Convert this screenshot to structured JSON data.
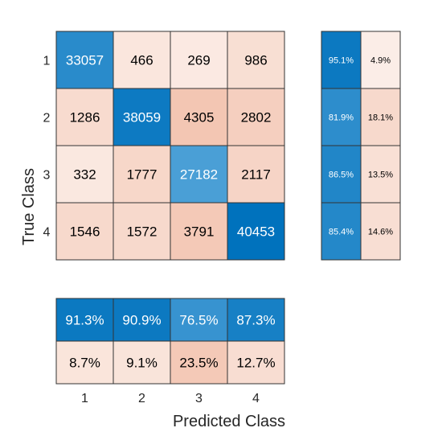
{
  "chart_data": {
    "type": "heatmap",
    "title": "",
    "xlabel": "Predicted Class",
    "ylabel": "True Class",
    "classes": [
      "1",
      "2",
      "3",
      "4"
    ],
    "matrix": [
      [
        33057,
        466,
        269,
        986
      ],
      [
        1286,
        38059,
        4305,
        2802
      ],
      [
        332,
        1777,
        27182,
        2117
      ],
      [
        1546,
        1572,
        3791,
        40453
      ]
    ],
    "row_summary": [
      [
        "95.1%",
        "4.9%"
      ],
      [
        "81.9%",
        "18.1%"
      ],
      [
        "86.5%",
        "13.5%"
      ],
      [
        "85.4%",
        "14.6%"
      ]
    ],
    "column_summary": {
      "correct": [
        "91.3%",
        "90.9%",
        "76.5%",
        "87.3%"
      ],
      "incorrect": [
        "8.7%",
        "9.1%",
        "23.5%",
        "12.7%"
      ]
    },
    "colors": {
      "diagonal_high": "#0072bd",
      "diagonal_low": "#4a9fd6",
      "off_high": "#f3c6b3",
      "off_low": "#fdf5f1",
      "grid_line": "#333333",
      "text_dark": "#000000",
      "text_light": "#ffffff"
    }
  }
}
